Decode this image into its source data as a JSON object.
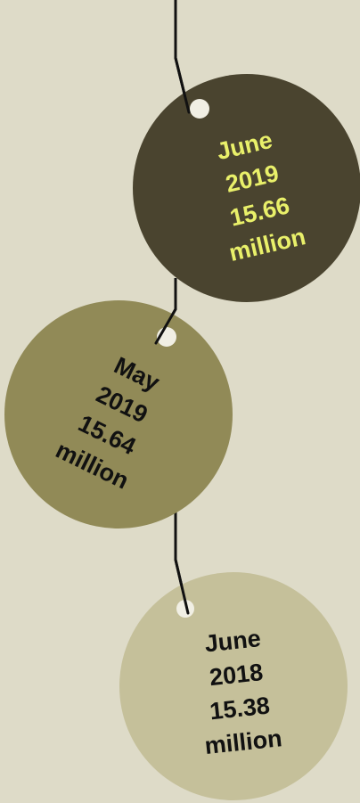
{
  "colors": {
    "background": "#dedbc8",
    "string": "#111111",
    "hole": "#f1efe4"
  },
  "chart_data": {
    "type": "hanging-tags",
    "unit": "million",
    "items": [
      {
        "month": "June",
        "year": "2019",
        "value": 15.66,
        "value_label": "15.66",
        "unit_label": "million",
        "color": "#4a442f",
        "text_color": "#e9f06a"
      },
      {
        "month": "May",
        "year": "2019",
        "value": 15.64,
        "value_label": "15.64",
        "unit_label": "million",
        "color": "#918a57",
        "text_color": "#111111"
      },
      {
        "month": "June",
        "year": "2018",
        "value": 15.38,
        "value_label": "15.38",
        "unit_label": "million",
        "color": "#c5c09a",
        "text_color": "#111111"
      }
    ]
  }
}
